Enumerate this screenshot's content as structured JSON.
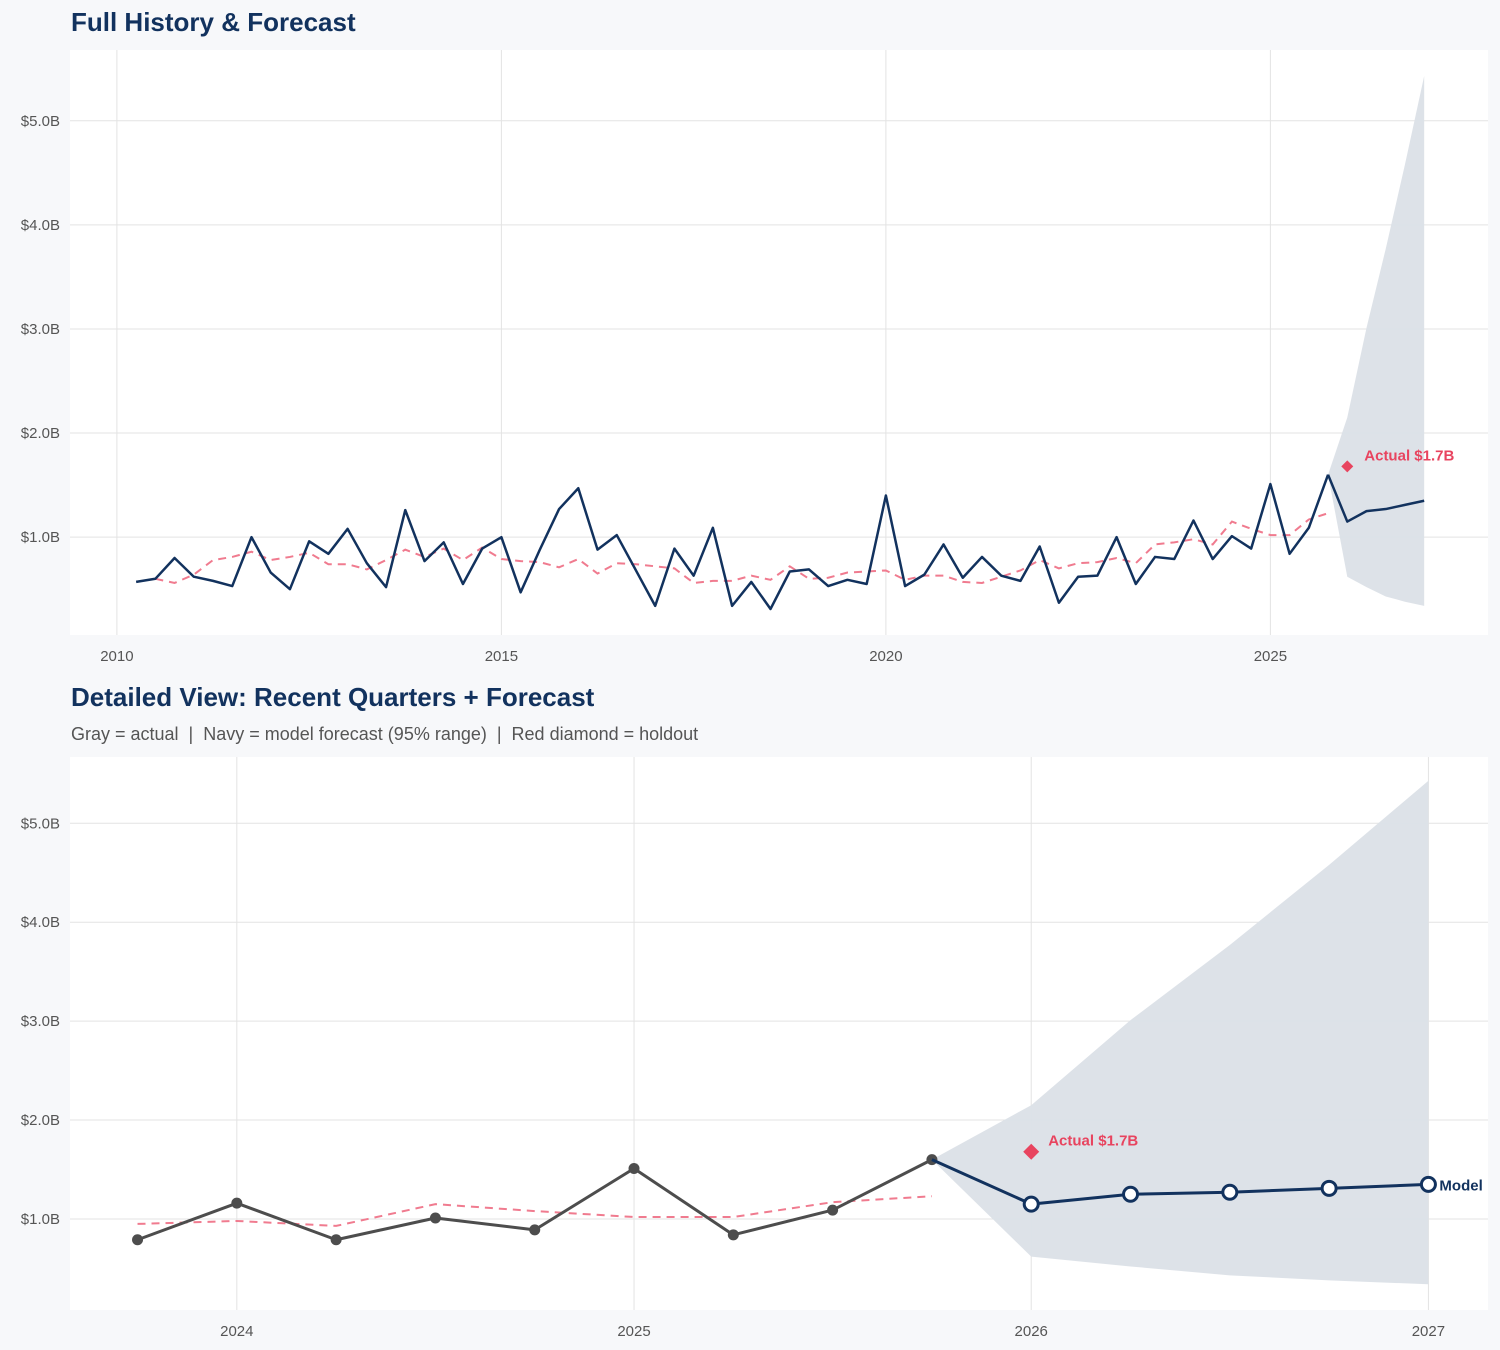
{
  "colors": {
    "navy": "#12325e",
    "gray": "#4d4d4d",
    "holdout_red": "#e8445f",
    "rolling_red": "#f07b8f",
    "band": "#dbe0e7",
    "grid": "#e3e3e3",
    "panel": "#ffffff",
    "background": "#f7f8fa"
  },
  "chart_data": [
    {
      "type": "line",
      "title": "Full History & Forecast",
      "xlabel": "",
      "ylabel": "",
      "x_ticks": [
        "2010",
        "2015",
        "2020",
        "2025"
      ],
      "y_ticks": [
        "$1.0B",
        "$2.0B",
        "$3.0B",
        "$4.0B",
        "$5.0B"
      ],
      "y_tick_values": [
        1,
        2,
        3,
        4,
        5
      ],
      "xlim": [
        2009.39,
        2027.83
      ],
      "ylim": [
        0.06,
        5.68
      ],
      "grid": true,
      "actual": {
        "color": "navy",
        "x": [
          "2010-04",
          "2010-07",
          "2010-10",
          "2011-01",
          "2011-04",
          "2011-07",
          "2011-10",
          "2012-01",
          "2012-04",
          "2012-07",
          "2012-10",
          "2013-01",
          "2013-04",
          "2013-07",
          "2013-10",
          "2014-01",
          "2014-04",
          "2014-07",
          "2014-10",
          "2015-01",
          "2015-04",
          "2015-07",
          "2015-10",
          "2016-01",
          "2016-04",
          "2016-07",
          "2016-10",
          "2017-01",
          "2017-04",
          "2017-07",
          "2017-10",
          "2018-01",
          "2018-04",
          "2018-07",
          "2018-10",
          "2019-01",
          "2019-04",
          "2019-07",
          "2019-10",
          "2020-01",
          "2020-04",
          "2020-07",
          "2020-10",
          "2021-01",
          "2021-04",
          "2021-07",
          "2021-10",
          "2022-01",
          "2022-04",
          "2022-07",
          "2022-10",
          "2023-01",
          "2023-04",
          "2023-07",
          "2023-10",
          "2024-01",
          "2024-04",
          "2024-07",
          "2024-10",
          "2025-01",
          "2025-04",
          "2025-07",
          "2025-10"
        ],
        "values": [
          0.57,
          0.6,
          0.8,
          0.62,
          0.58,
          0.53,
          1.0,
          0.66,
          0.5,
          0.96,
          0.84,
          1.08,
          0.75,
          0.52,
          1.26,
          0.77,
          0.95,
          0.55,
          0.89,
          1.0,
          0.47,
          0.88,
          1.27,
          1.47,
          0.88,
          1.02,
          0.68,
          0.34,
          0.89,
          0.63,
          1.09,
          0.34,
          0.57,
          0.31,
          0.67,
          0.69,
          0.53,
          0.59,
          0.55,
          1.4,
          0.53,
          0.64,
          0.93,
          0.61,
          0.81,
          0.63,
          0.58,
          0.91,
          0.37,
          0.62,
          0.63,
          1.0,
          0.55,
          0.81,
          0.79,
          1.16,
          0.79,
          1.01,
          0.89,
          1.51,
          0.84,
          1.09,
          1.6
        ]
      },
      "rolling": {
        "style": "dashed",
        "x": [
          "2010-07",
          "2010-10",
          "2011-01",
          "2011-04",
          "2011-07",
          "2011-10",
          "2012-01",
          "2012-04",
          "2012-07",
          "2012-10",
          "2013-01",
          "2013-04",
          "2013-07",
          "2013-10",
          "2014-01",
          "2014-04",
          "2014-07",
          "2014-10",
          "2015-01",
          "2015-04",
          "2015-07",
          "2015-10",
          "2016-01",
          "2016-04",
          "2016-07",
          "2016-10",
          "2017-01",
          "2017-04",
          "2017-07",
          "2017-10",
          "2018-01",
          "2018-04",
          "2018-07",
          "2018-10",
          "2019-01",
          "2019-04",
          "2019-07",
          "2019-10",
          "2020-01",
          "2020-04",
          "2020-07",
          "2020-10",
          "2021-01",
          "2021-04",
          "2021-07",
          "2021-10",
          "2022-01",
          "2022-04",
          "2022-07",
          "2022-10",
          "2023-01",
          "2023-04",
          "2023-07",
          "2023-10",
          "2024-01",
          "2024-04",
          "2024-07",
          "2024-10",
          "2025-01",
          "2025-04",
          "2025-07",
          "2025-10"
        ],
        "values": [
          0.6,
          0.56,
          0.64,
          0.78,
          0.81,
          0.86,
          0.78,
          0.81,
          0.85,
          0.74,
          0.74,
          0.69,
          0.78,
          0.88,
          0.81,
          0.89,
          0.78,
          0.9,
          0.79,
          0.77,
          0.76,
          0.71,
          0.79,
          0.65,
          0.75,
          0.74,
          0.72,
          0.7,
          0.56,
          0.58,
          0.58,
          0.63,
          0.59,
          0.72,
          0.6,
          0.61,
          0.66,
          0.67,
          0.68,
          0.59,
          0.63,
          0.63,
          0.57,
          0.56,
          0.62,
          0.68,
          0.78,
          0.7,
          0.75,
          0.76,
          0.8,
          0.75,
          0.93,
          0.95,
          0.98,
          0.93,
          1.15,
          1.08,
          1.02,
          1.02,
          1.17,
          1.23
        ]
      },
      "forecast": {
        "x": [
          "2025-10",
          "2026-01",
          "2026-04",
          "2026-07",
          "2026-10",
          "2027-01"
        ],
        "values": [
          1.6,
          1.15,
          1.25,
          1.27,
          1.31,
          1.35
        ],
        "lower": [
          1.6,
          0.62,
          0.52,
          0.43,
          0.38,
          0.34
        ],
        "upper": [
          1.6,
          2.15,
          3.01,
          3.77,
          4.58,
          5.43
        ],
        "markers": false
      },
      "holdout": {
        "x": "2026-01",
        "value": 1.68,
        "label": "Actual $1.7B"
      }
    },
    {
      "type": "line",
      "title": "Detailed View: Recent Quarters + Forecast",
      "subtitle": "Gray = actual  |  Navy = model forecast (95% range)  |  Red diamond = holdout",
      "xlabel": "",
      "ylabel": "",
      "x_ticks": [
        "2024",
        "2025",
        "2026",
        "2027"
      ],
      "y_ticks": [
        "$1.0B",
        "$2.0B",
        "$3.0B",
        "$4.0B",
        "$5.0B"
      ],
      "y_tick_values": [
        1,
        2,
        3,
        4,
        5
      ],
      "xlim": [
        2023.58,
        2027.15
      ],
      "ylim": [
        0.08,
        5.67
      ],
      "grid": true,
      "actual": {
        "color": "gray",
        "markers": true,
        "x": [
          "2023-10",
          "2024-01",
          "2024-04",
          "2024-07",
          "2024-10",
          "2025-01",
          "2025-04",
          "2025-07",
          "2025-10"
        ],
        "values": [
          0.79,
          1.16,
          0.79,
          1.01,
          0.89,
          1.51,
          0.84,
          1.09,
          1.6
        ]
      },
      "rolling": {
        "style": "dashed",
        "x": [
          "2023-10",
          "2024-01",
          "2024-04",
          "2024-07",
          "2024-10",
          "2025-01",
          "2025-04",
          "2025-07",
          "2025-10"
        ],
        "values": [
          0.95,
          0.98,
          0.93,
          1.15,
          1.08,
          1.02,
          1.02,
          1.17,
          1.23
        ]
      },
      "forecast": {
        "x": [
          "2025-10",
          "2026-01",
          "2026-04",
          "2026-07",
          "2026-10",
          "2027-01"
        ],
        "values": [
          1.6,
          1.15,
          1.25,
          1.27,
          1.31,
          1.35
        ],
        "lower": [
          1.6,
          0.62,
          0.52,
          0.43,
          0.38,
          0.34
        ],
        "upper": [
          1.6,
          2.15,
          3.01,
          3.77,
          4.58,
          5.43
        ],
        "markers": true,
        "end_label": "Model"
      },
      "holdout": {
        "x": "2026-01",
        "value": 1.68,
        "label": "Actual $1.7B"
      }
    }
  ]
}
